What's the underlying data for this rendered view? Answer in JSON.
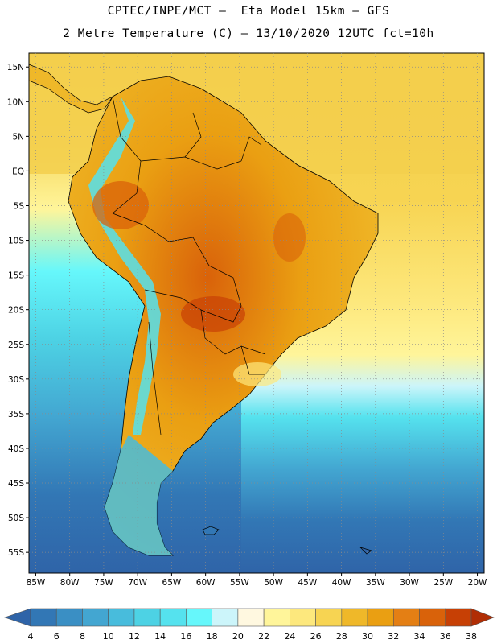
{
  "title_line1": "CPTEC/INPE/MCT –  Eta Model 15km – GFS",
  "title_line2": "2 Metre Temperature (C) – 13/10/2020 12UTC fct=10h",
  "map": {
    "lon_range": [
      -86,
      -19
    ],
    "lat_range": [
      -58,
      17
    ],
    "lat_ticks": [
      "15N",
      "10N",
      "5N",
      "EQ",
      "5S",
      "10S",
      "15S",
      "20S",
      "25S",
      "30S",
      "35S",
      "40S",
      "45S",
      "50S",
      "55S"
    ],
    "lon_ticks": [
      "85W",
      "80W",
      "75W",
      "70W",
      "65W",
      "60W",
      "55W",
      "50W",
      "45W",
      "40W",
      "35W",
      "30W",
      "25W",
      "20W"
    ],
    "grid": "dotted"
  },
  "colorbar": {
    "labels": [
      "4",
      "6",
      "8",
      "10",
      "12",
      "14",
      "16",
      "18",
      "20",
      "22",
      "24",
      "26",
      "28",
      "30",
      "32",
      "34",
      "36",
      "38"
    ],
    "colors": [
      "#2f64a8",
      "#3277b5",
      "#3a8fc4",
      "#43a6d1",
      "#48bcdc",
      "#4dd2e4",
      "#55e2ee",
      "#66f7fb",
      "#ccf5fa",
      "#fff8e0",
      "#fff59a",
      "#fde87d",
      "#f7d452",
      "#efb829",
      "#ea9f12",
      "#e47f14",
      "#d9620a",
      "#c74005",
      "#b02e05"
    ]
  }
}
